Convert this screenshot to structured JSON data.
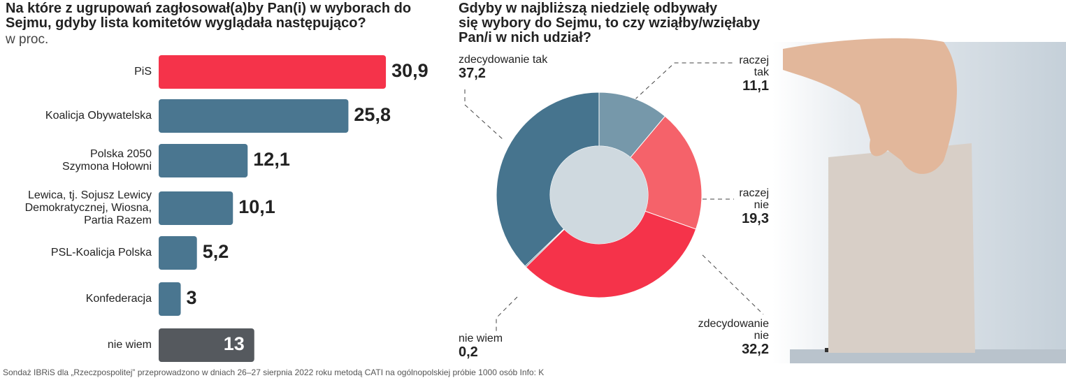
{
  "chart_data": [
    {
      "type": "hbar",
      "title": "Na które z ugrupowań zagłosował(a)by Pan(i) w wyborach do\nSejmu, gdyby lista komitetów wyglądała następująco?",
      "subtitle": "w proc.",
      "categories": [
        "PiS",
        "Koalicja Obywatelska",
        "Polska 2050\nSzymona Hołowni",
        "Lewica, tj. Sojusz Lewicy\nDemokratycznej, Wiosna,\nPartia Razem",
        "PSL-Koalicja Polska",
        "Konfederacja",
        "nie wiem"
      ],
      "values": [
        30.9,
        25.8,
        12.1,
        10.1,
        5.2,
        3,
        13
      ],
      "value_labels": [
        "30,9",
        "25,8",
        "12,1",
        "10,1",
        "5,2",
        "3",
        "13"
      ],
      "colors": [
        "#f5334a",
        "#4a7690",
        "#4a7690",
        "#4a7690",
        "#4a7690",
        "#4a7690",
        "#55595e"
      ]
    },
    {
      "type": "donut",
      "title": "Gdyby w najbliższą niedzielę odbywały\nsię wybory do Sejmu, to czy wziąłby/wzięłaby\nPan/i w nich udział?",
      "categories": [
        "zdecydowanie tak",
        "raczej\ntak",
        "raczej\nnie",
        "zdecydowanie\nnie",
        "nie wiem"
      ],
      "values": [
        37.2,
        11.1,
        19.3,
        32.2,
        0.2
      ],
      "value_labels": [
        "37,2",
        "11,1",
        "19,3",
        "32,2",
        "0,2"
      ],
      "colors": [
        "#46748e",
        "#7698aa",
        "#f5626a",
        "#f5334a",
        "#2f5a72"
      ]
    }
  ],
  "footer": "Sondaż IBRiS dla „Rzeczpospolitej” przeprowadzono w dniach 26–27 sierpnia 2022 roku metodą CATI na ogólnopolskiej próbie 1000 osób Info: K"
}
